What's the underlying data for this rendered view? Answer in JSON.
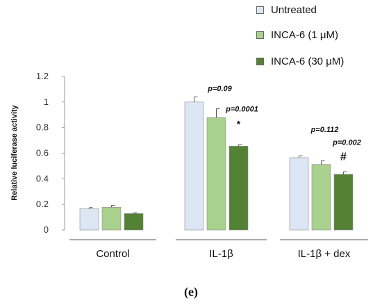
{
  "chart_data": {
    "type": "bar",
    "categories": [
      "Control",
      "IL-1β",
      "IL-1β + dex"
    ],
    "ylabel": "Relative luciferase activity",
    "xlabel": "",
    "ylim": [
      0,
      1.2
    ],
    "yticks": [
      0,
      0.2,
      0.4,
      0.6,
      0.8,
      1,
      1.2
    ],
    "ytick_labels": [
      "0",
      "0.2",
      "0.4",
      "0.6",
      "0.8",
      "1",
      "1.2"
    ],
    "grid": false,
    "legend_position": "top-right",
    "series": [
      {
        "name": "Untreated",
        "color": "#dde6f5",
        "values": [
          0.165,
          1.0,
          0.565
        ],
        "errors": [
          0.01,
          0.04,
          0.015
        ]
      },
      {
        "name": "INCA-6 (1 μM)",
        "color": "#a9d18e",
        "values": [
          0.178,
          0.878,
          0.512
        ],
        "errors": [
          0.015,
          0.07,
          0.03
        ]
      },
      {
        "name": "INCA-6 (30 μM)",
        "color": "#548235",
        "values": [
          0.128,
          0.655,
          0.435
        ],
        "errors": [
          0.006,
          0.012,
          0.02
        ]
      }
    ],
    "annotations": [
      {
        "text": "p=0.09",
        "category": 1,
        "series": 1,
        "y": 1.085,
        "style": "italic"
      },
      {
        "text": "p=0.0001",
        "category": 1,
        "series": 2,
        "y": 0.925,
        "style": "italic"
      },
      {
        "text": "*",
        "category": 1,
        "series": 2,
        "y": 0.8,
        "style": "normal"
      },
      {
        "text": "p=0.112",
        "category": 2,
        "series": 1,
        "y": 0.765,
        "style": "italic"
      },
      {
        "text": "p=0.002",
        "category": 2,
        "series": 2,
        "y": 0.665,
        "style": "italic"
      },
      {
        "text": "#",
        "category": 2,
        "series": 2,
        "y": 0.545,
        "style": "normal"
      }
    ]
  },
  "panel_label": "(e)"
}
